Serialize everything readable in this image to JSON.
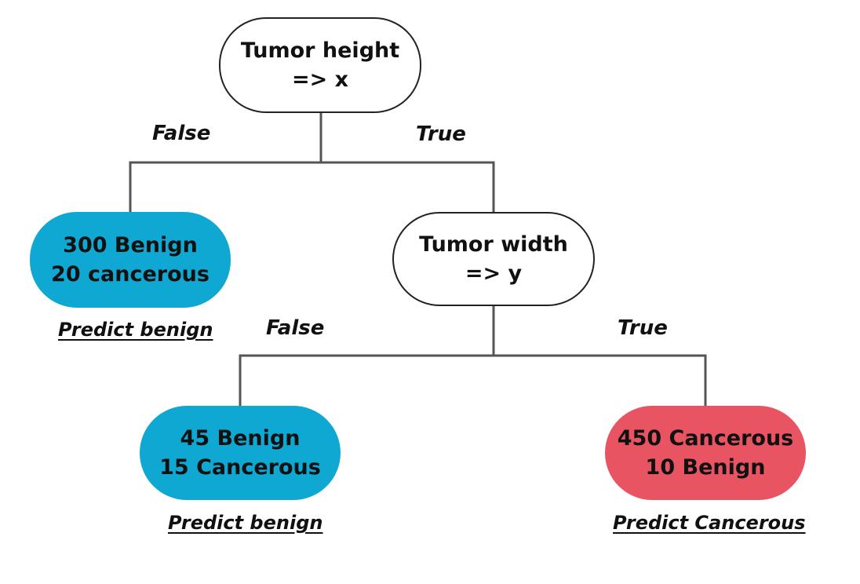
{
  "colors": {
    "benign_leaf": "#0fa8d2",
    "cancerous_leaf": "#e85462",
    "decision_fill": "#ffffff",
    "edge": "#555555"
  },
  "nodes": {
    "root": {
      "line1": "Tumor height",
      "line2": "=> x"
    },
    "width_split": {
      "line1": "Tumor width",
      "line2": "=> y"
    },
    "leaf_left": {
      "line1": "300 Benign",
      "line2": "20 cancerous",
      "prediction": "Predict benign"
    },
    "leaf_mid": {
      "line1": "45 Benign",
      "line2": "15 Cancerous",
      "prediction": "Predict benign"
    },
    "leaf_right": {
      "line1": "450 Cancerous",
      "line2": "10 Benign",
      "prediction": "Predict Cancerous"
    }
  },
  "edge_labels": {
    "root_false": "False",
    "root_true": "True",
    "width_false": "False",
    "width_true": "True"
  }
}
